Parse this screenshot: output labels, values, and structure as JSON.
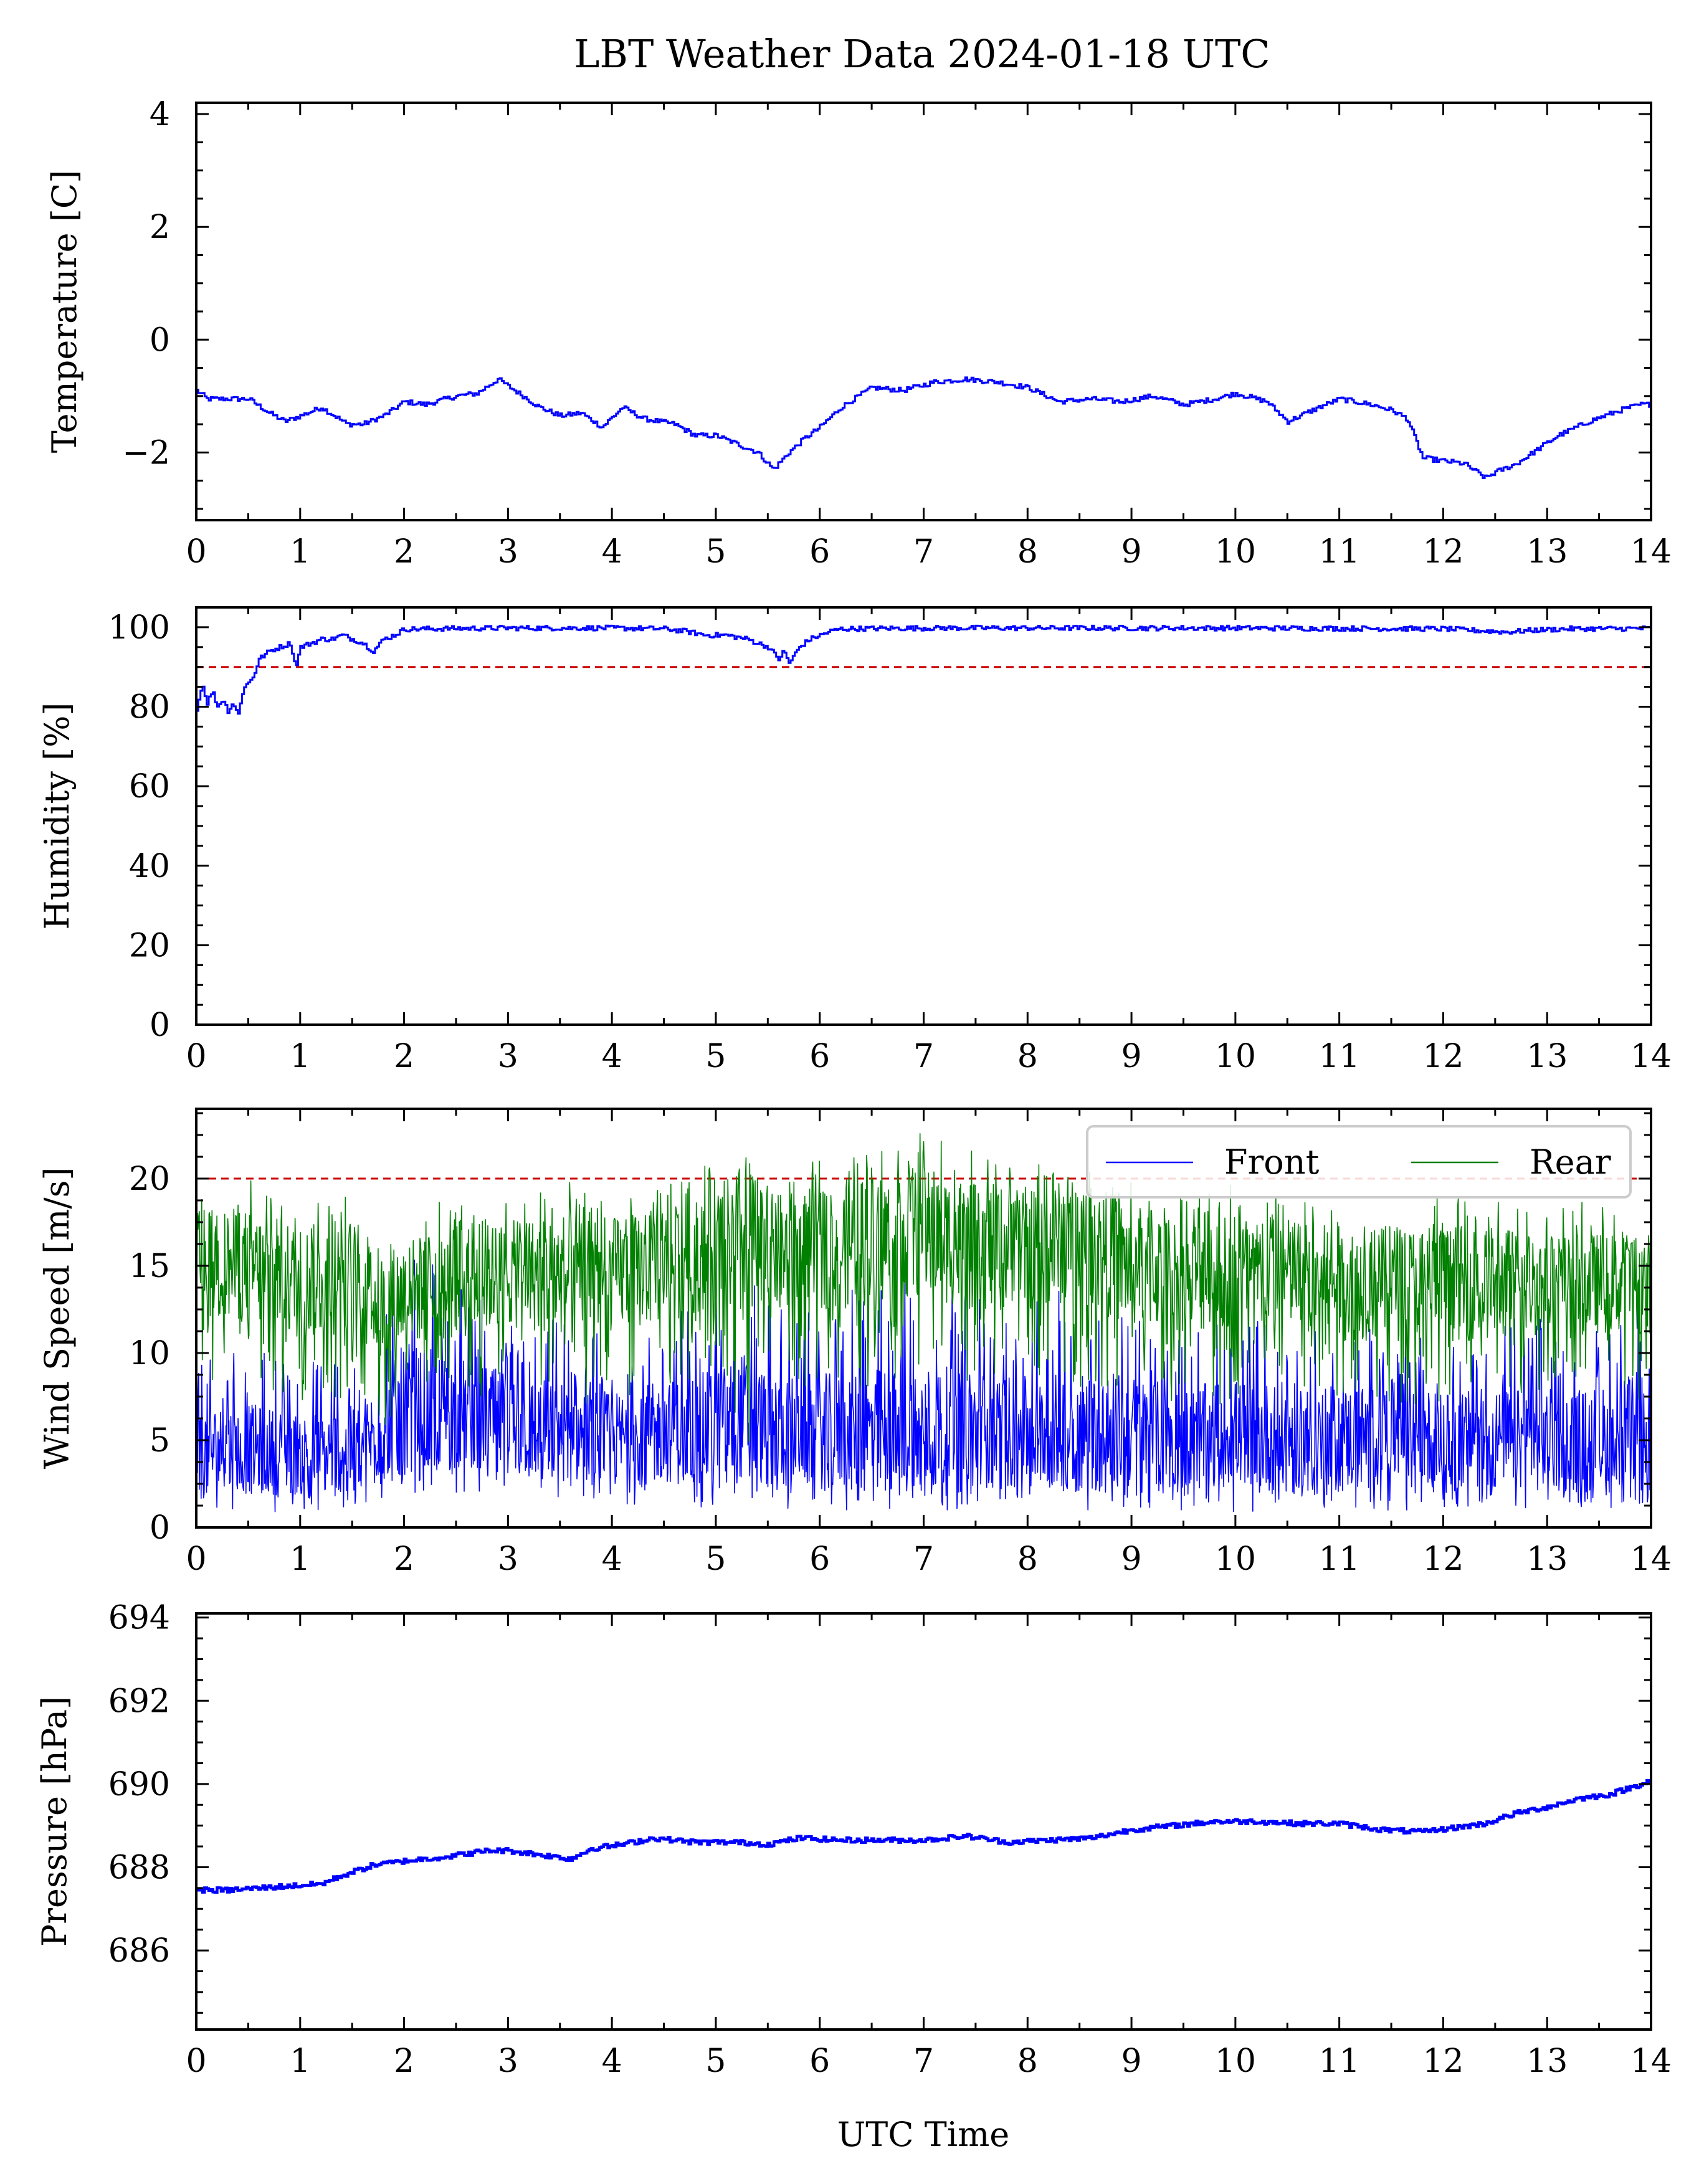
{
  "title": "LBT Weather Data 2024-01-18 UTC",
  "xlabel": "UTC Time",
  "colors": {
    "front": "#0000ff",
    "rear": "#008000",
    "threshold": "#cc0000"
  },
  "chart_data": [
    {
      "type": "line",
      "ylabel": "Temperature [C]",
      "xlim": [
        0,
        14
      ],
      "ylim": [
        -3.2,
        4.2
      ],
      "xticks": [
        "0",
        "1",
        "2",
        "3",
        "4",
        "5",
        "6",
        "7",
        "8",
        "9",
        "10",
        "11",
        "12",
        "13",
        "14"
      ],
      "yticks": [
        -2,
        0,
        2,
        4
      ],
      "ytick_labels": [
        "−2",
        "0",
        "2",
        "4"
      ],
      "series": [
        {
          "x": [
            0,
            0.1,
            0.3,
            0.5,
            0.7,
            0.85,
            1.0,
            1.2,
            1.45,
            1.6,
            1.8,
            2.0,
            2.2,
            2.5,
            2.7,
            2.9,
            3.1,
            3.3,
            3.5,
            3.7,
            3.9,
            4.1,
            4.3,
            4.6,
            4.8,
            5.0,
            5.2,
            5.4,
            5.55,
            5.7,
            5.85,
            6.0,
            6.2,
            6.5,
            6.8,
            7.1,
            7.4,
            7.7,
            8.0,
            8.3,
            8.6,
            8.9,
            9.2,
            9.5,
            9.8,
            10.0,
            10.3,
            10.5,
            10.8,
            11.0,
            11.3,
            11.5,
            11.65,
            11.8,
            12.0,
            12.2,
            12.4,
            12.5,
            12.7,
            12.9,
            13.1,
            13.4,
            13.7,
            13.9,
            14.0
          ],
          "y": [
            -0.9,
            -1.05,
            -1.05,
            -1.05,
            -1.3,
            -1.45,
            -1.35,
            -1.2,
            -1.5,
            -1.5,
            -1.35,
            -1.1,
            -1.15,
            -1.0,
            -0.95,
            -0.7,
            -0.95,
            -1.2,
            -1.35,
            -1.3,
            -1.55,
            -1.2,
            -1.4,
            -1.5,
            -1.7,
            -1.7,
            -1.85,
            -2.0,
            -2.3,
            -2.0,
            -1.75,
            -1.55,
            -1.2,
            -0.85,
            -0.9,
            -0.75,
            -0.7,
            -0.75,
            -0.85,
            -1.1,
            -1.05,
            -1.1,
            -1.0,
            -1.15,
            -1.05,
            -0.95,
            -1.1,
            -1.45,
            -1.2,
            -1.05,
            -1.15,
            -1.25,
            -1.4,
            -2.1,
            -2.15,
            -2.2,
            -2.45,
            -2.35,
            -2.2,
            -1.95,
            -1.7,
            -1.45,
            -1.25,
            -1.15,
            -1.15
          ]
        }
      ]
    },
    {
      "type": "line",
      "ylabel": "Humidity [%]",
      "xlim": [
        0,
        14
      ],
      "ylim": [
        0,
        105
      ],
      "xticks": [
        "0",
        "1",
        "2",
        "3",
        "4",
        "5",
        "6",
        "7",
        "8",
        "9",
        "10",
        "11",
        "12",
        "13",
        "14"
      ],
      "yticks": [
        0,
        20,
        40,
        60,
        80,
        100
      ],
      "threshold": 90,
      "series": [
        {
          "x": [
            0,
            0.05,
            0.1,
            0.15,
            0.2,
            0.25,
            0.3,
            0.35,
            0.4,
            0.45,
            0.5,
            0.55,
            0.6,
            0.7,
            0.8,
            0.9,
            0.95,
            1.0,
            1.1,
            1.2,
            1.3,
            1.4,
            1.5,
            1.6,
            1.7,
            1.8,
            1.9,
            2.0,
            2.5,
            3.0,
            3.5,
            4.0,
            4.5,
            4.7,
            4.9,
            5.1,
            5.3,
            5.4,
            5.5,
            5.6,
            5.65,
            5.7,
            5.8,
            5.9,
            6.0,
            6.1,
            6.2,
            7.0,
            8.0,
            9.0,
            10.0,
            11.0,
            12.0,
            12.3,
            12.6,
            12.9,
            13.2,
            14.0
          ],
          "y": [
            79,
            86,
            81,
            84,
            80,
            82,
            79,
            81,
            78,
            85,
            86,
            88,
            92,
            94,
            95,
            96,
            90,
            95,
            96,
            97,
            97,
            98,
            97,
            96,
            94,
            97,
            98,
            99.5,
            99.7,
            99.8,
            99.8,
            99.8,
            99.6,
            99,
            98,
            98,
            97,
            96,
            95,
            92,
            94,
            91,
            95,
            97,
            98,
            99,
            99.6,
            99.8,
            99.8,
            99.8,
            99.8,
            99.7,
            99.6,
            99.2,
            98.8,
            99.3,
            99.6,
            99.7
          ]
        }
      ]
    },
    {
      "type": "line",
      "ylabel": "Wind Speed [m/s]",
      "xlim": [
        0,
        14
      ],
      "ylim": [
        0,
        24
      ],
      "xticks": [
        "0",
        "1",
        "2",
        "3",
        "4",
        "5",
        "6",
        "7",
        "8",
        "9",
        "10",
        "11",
        "12",
        "13",
        "14"
      ],
      "yticks": [
        0,
        5,
        10,
        15,
        20
      ],
      "threshold": 20,
      "legend": {
        "position": "top-right",
        "columns": 2
      },
      "series": [
        {
          "name": "Front",
          "x": [
            0,
            0.5,
            1.0,
            1.5,
            1.8,
            2.0,
            2.5,
            3.0,
            3.5,
            4.0,
            4.5,
            5.0,
            5.3,
            5.5,
            6.0,
            6.5,
            7.0,
            7.5,
            8.0,
            8.5,
            9.0,
            9.5,
            10.0,
            10.5,
            11.0,
            11.5,
            12.0,
            12.5,
            13.0,
            13.5,
            14.0
          ],
          "center": [
            4.5,
            4.5,
            4.2,
            4.5,
            5.5,
            6.5,
            6.5,
            6.0,
            5.5,
            5.0,
            5.5,
            5.5,
            6.5,
            5.5,
            5.5,
            5.5,
            5.5,
            5.5,
            5.5,
            5.5,
            5.5,
            5.0,
            5.5,
            5.0,
            5.0,
            5.5,
            5.0,
            5.0,
            5.0,
            5.0,
            5.0
          ],
          "low": [
            1.2,
            1.0,
            0.8,
            1.0,
            1.5,
            2.0,
            2.0,
            1.5,
            1.5,
            1.0,
            1.5,
            1.0,
            1.5,
            1.0,
            1.0,
            0.8,
            1.0,
            1.0,
            1.5,
            1.0,
            1.0,
            1.0,
            0.8,
            1.0,
            0.8,
            1.0,
            1.0,
            1.0,
            1.2,
            1.0,
            1.5
          ],
          "high": [
            10,
            10.5,
            9.5,
            10,
            12,
            17,
            14,
            12,
            12,
            11,
            12,
            14,
            15,
            13,
            13,
            14,
            15,
            14,
            13,
            14,
            13,
            12,
            12,
            13,
            12,
            12,
            11,
            12,
            12,
            12,
            17
          ]
        },
        {
          "name": "Rear",
          "x": [
            0,
            0.5,
            1.0,
            1.5,
            1.8,
            2.0,
            2.5,
            3.0,
            3.5,
            4.0,
            4.5,
            5.0,
            5.3,
            5.5,
            6.0,
            6.5,
            7.0,
            7.5,
            8.0,
            8.5,
            9.0,
            9.5,
            10.0,
            10.5,
            11.0,
            11.5,
            12.0,
            12.5,
            13.0,
            13.5,
            14.0
          ],
          "center": [
            15,
            15,
            14,
            14.5,
            12.5,
            13.5,
            14,
            14.5,
            14.5,
            14.5,
            15,
            16,
            16,
            15.5,
            16,
            16.5,
            17,
            16,
            16,
            16.5,
            15,
            14.5,
            14.5,
            14.5,
            14,
            14,
            14,
            14,
            14,
            14,
            14
          ],
          "low": [
            8,
            8,
            7,
            7,
            5,
            7,
            7,
            8,
            7,
            7,
            8,
            9,
            2,
            8,
            8,
            8,
            9,
            8,
            8,
            8,
            7,
            7,
            7,
            7,
            7,
            7,
            7,
            7,
            8,
            8,
            7
          ],
          "high": [
            20,
            20,
            19,
            19,
            17,
            18,
            19,
            19,
            20,
            19,
            20,
            21,
            21.5,
            21,
            21,
            22,
            22.7,
            21.5,
            21,
            21,
            20,
            19,
            20,
            19,
            19,
            19,
            19,
            19,
            19,
            18.5,
            17.5
          ]
        }
      ]
    },
    {
      "type": "line",
      "ylabel": "Pressure [hPa]",
      "xlim": [
        0,
        14
      ],
      "ylim": [
        684.1,
        694.1
      ],
      "xticks": [
        "0",
        "1",
        "2",
        "3",
        "4",
        "5",
        "6",
        "7",
        "8",
        "9",
        "10",
        "11",
        "12",
        "13",
        "14"
      ],
      "yticks": [
        686,
        688,
        690,
        692,
        694
      ],
      "series": [
        {
          "x": [
            0,
            0.3,
            0.6,
            0.9,
            1.2,
            1.4,
            1.7,
            2.0,
            2.4,
            2.8,
            3.0,
            3.3,
            3.6,
            3.8,
            4.1,
            4.4,
            4.8,
            5.2,
            5.5,
            5.8,
            6.2,
            6.6,
            7.0,
            7.4,
            7.8,
            8.2,
            8.6,
            9.0,
            9.4,
            9.8,
            10.2,
            10.6,
            11.0,
            11.4,
            11.8,
            12.1,
            12.4,
            12.7,
            13.0,
            13.3,
            13.6,
            13.9,
            14.0
          ],
          "y": [
            687.45,
            687.45,
            687.5,
            687.55,
            687.6,
            687.8,
            688.05,
            688.15,
            688.25,
            688.4,
            688.4,
            688.3,
            688.2,
            688.45,
            688.55,
            688.7,
            688.6,
            688.6,
            688.55,
            688.7,
            688.65,
            688.65,
            688.65,
            688.75,
            688.6,
            688.65,
            688.7,
            688.9,
            689.0,
            689.1,
            689.1,
            689.05,
            689.05,
            688.9,
            688.85,
            688.95,
            689.05,
            689.3,
            689.45,
            689.65,
            689.75,
            690.0,
            690.1
          ]
        }
      ]
    }
  ]
}
